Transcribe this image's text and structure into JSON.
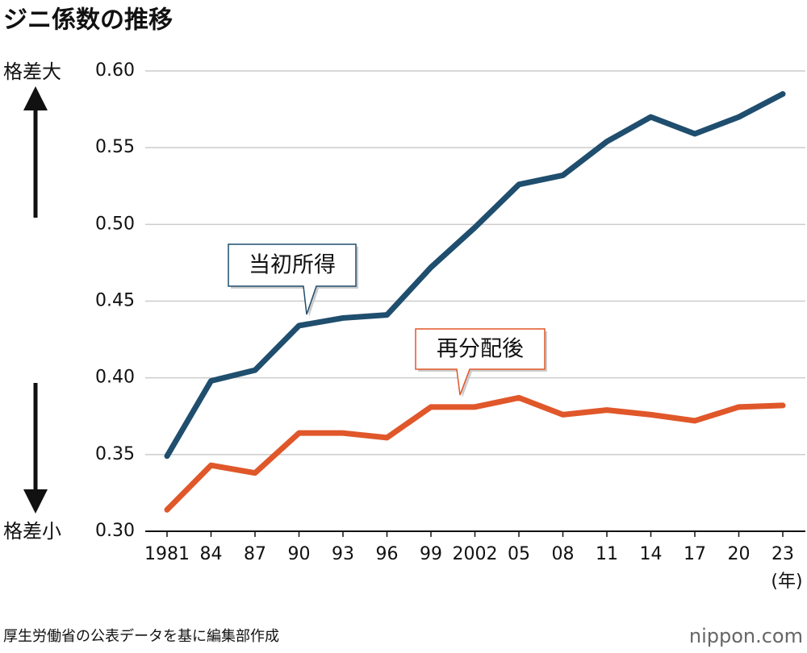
{
  "chart_data": {
    "type": "line",
    "title": "ジニ係数の推移",
    "categories": [
      "1981",
      "84",
      "87",
      "90",
      "93",
      "96",
      "99",
      "2002",
      "05",
      "08",
      "11",
      "14",
      "17",
      "20",
      "23"
    ],
    "x_unit": "(年)",
    "series": [
      {
        "name": "当初所得",
        "color": "#1f4e6e",
        "values": [
          0.349,
          0.398,
          0.405,
          0.434,
          0.439,
          0.441,
          0.472,
          0.498,
          0.526,
          0.532,
          0.554,
          0.57,
          0.559,
          0.57,
          0.585
        ]
      },
      {
        "name": "再分配後",
        "color": "#e0572a",
        "values": [
          0.314,
          0.343,
          0.338,
          0.364,
          0.364,
          0.361,
          0.381,
          0.381,
          0.387,
          0.376,
          0.379,
          0.376,
          0.372,
          0.381,
          0.382
        ]
      }
    ],
    "ylim": [
      0.3,
      0.6
    ],
    "yticks": [
      {
        "value": 0.3,
        "label": "0.30"
      },
      0.35,
      {
        "value": 0.4,
        "label": "0.40"
      },
      0.45,
      {
        "value": 0.5,
        "label": "0.50"
      },
      0.55,
      {
        "value": 0.6,
        "label": "0.60"
      }
    ],
    "grid": true,
    "y_top_label": "格差大",
    "y_bottom_label": "格差小",
    "source": "厚生労働省の公表データを基に編集部作成",
    "logo": "nippon.com"
  }
}
